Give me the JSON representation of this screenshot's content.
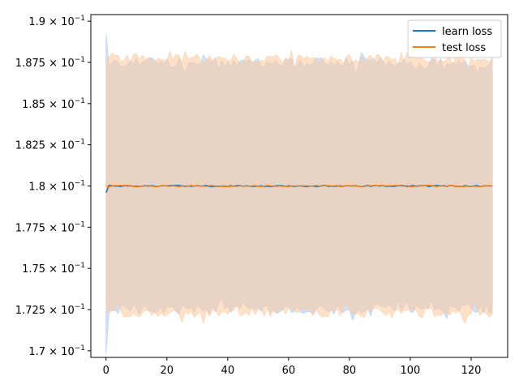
{
  "chart_data": {
    "type": "line",
    "title": "",
    "xlabel": "",
    "ylabel": "",
    "xlim": [
      -5,
      132
    ],
    "ylim": [
      0.1696,
      0.1904
    ],
    "x_ticks": [
      0,
      20,
      40,
      60,
      80,
      100,
      120
    ],
    "x_tick_labels": [
      "0",
      "20",
      "40",
      "60",
      "80",
      "100",
      "120"
    ],
    "y_ticks": [
      0.17,
      0.1725,
      0.175,
      0.1775,
      0.18,
      0.1825,
      0.185,
      0.1875,
      0.19
    ],
    "y_tick_mantissas": [
      "1.7",
      "1.725",
      "1.75",
      "1.775",
      "1.8",
      "1.825",
      "1.85",
      "1.875",
      "1.9"
    ],
    "y_tick_base": "10",
    "y_tick_exponent": "−1",
    "grid": false,
    "legend_position": "upper-right",
    "x": {
      "start": 0,
      "end": 127,
      "step": 1
    },
    "series": [
      {
        "name": "learn loss",
        "color": "#1f77b4",
        "band_color": "#a6c8f0",
        "mean_endpoints": [
          0.1796,
          0.18
        ],
        "band_range": [
          0.1725,
          0.1875
        ],
        "band_first_point": [
          0.1698,
          0.1892
        ]
      },
      {
        "name": "test loss",
        "color": "#ff7f0e",
        "band_color": "#ffc89a",
        "mean_endpoints": [
          0.18,
          0.18
        ],
        "band_range": [
          0.1723,
          0.1877
        ]
      }
    ]
  }
}
